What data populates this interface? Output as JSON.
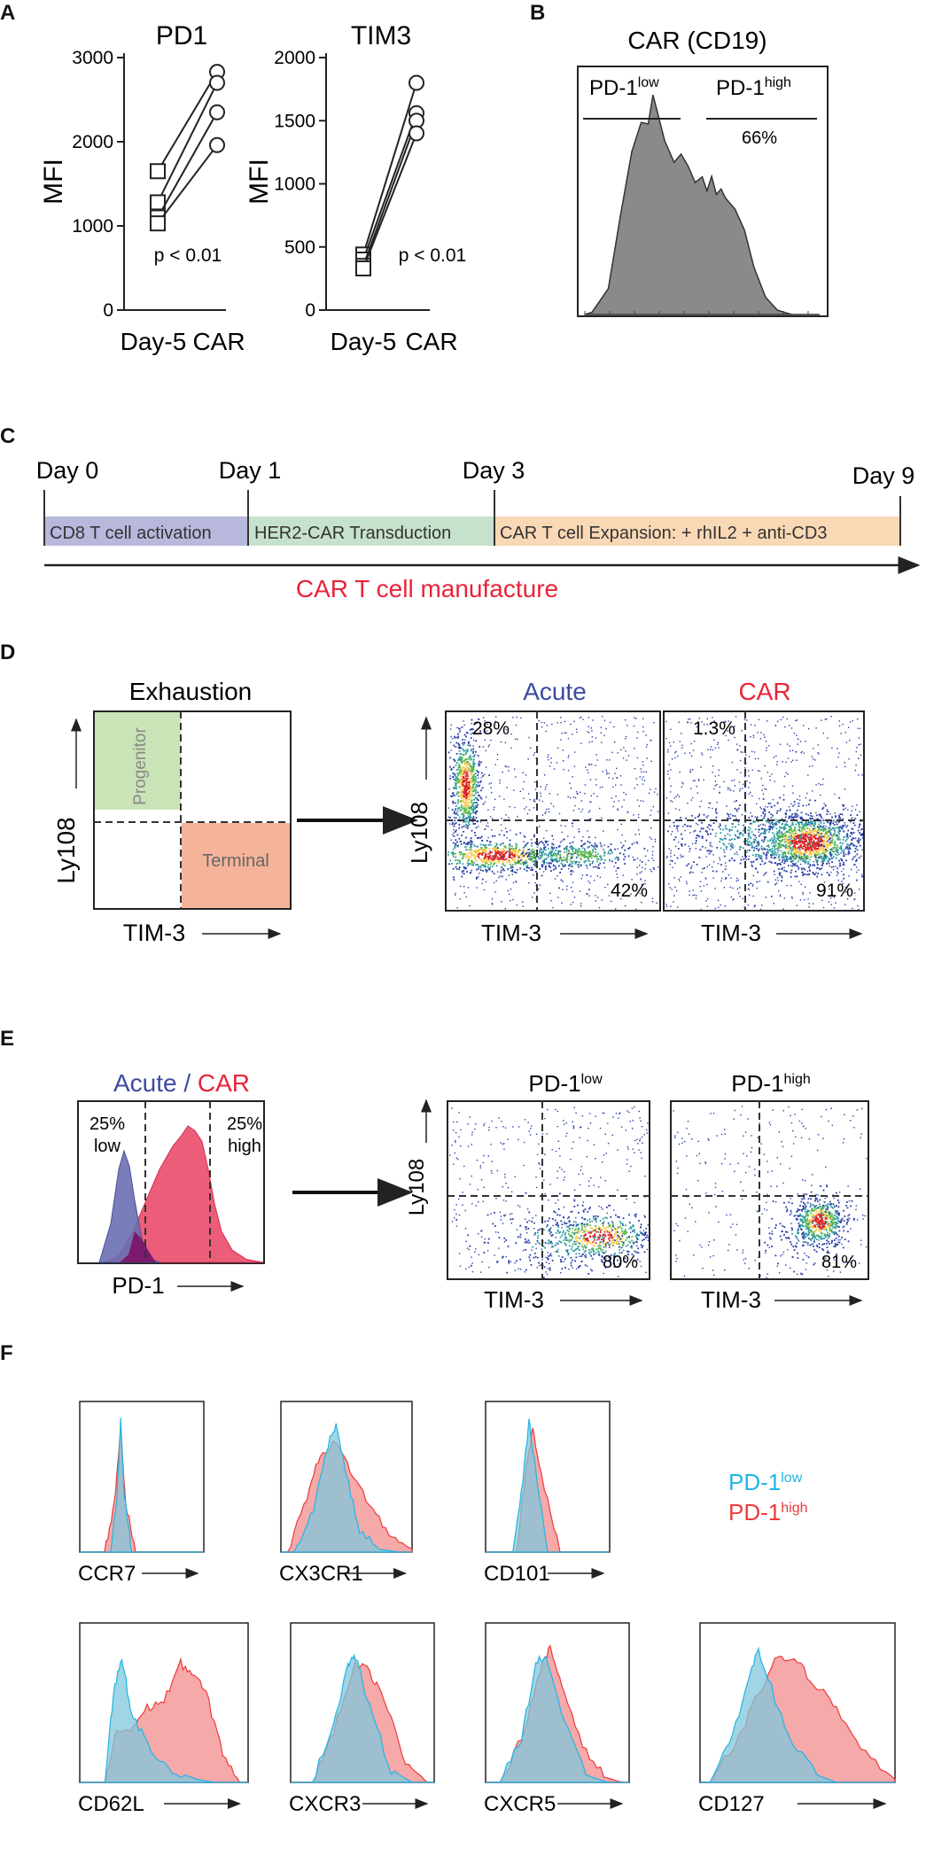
{
  "panels": {
    "A": "A",
    "B": "B",
    "C": "C",
    "D": "D",
    "E": "E",
    "F": "F"
  },
  "colors": {
    "acute": "#3b4ba0",
    "car": "#e8243a",
    "progenitor": "#c9e4b6",
    "terminal": "#f5b49a",
    "pd1low": "#22b5e6",
    "pd1high": "#ee3a3a",
    "cd8": "#b7b8dc",
    "her2": "#c7e2cc",
    "exp": "#f9d8b5",
    "gray": "#8a8a8a"
  },
  "panelA": {
    "charts": [
      {
        "title": "PD1",
        "ylabel": "MFI",
        "yticks": [
          "0",
          "1000",
          "2000",
          "3000"
        ],
        "xticks": [
          "Day-5",
          "CAR"
        ],
        "p_text": "p < 0.01"
      },
      {
        "title": "TIM3",
        "ylabel": "MFI",
        "yticks": [
          "0",
          "500",
          "1000",
          "1500",
          "2000"
        ],
        "xticks": [
          "Day-5",
          "CAR"
        ],
        "p_text": "p < 0.01"
      }
    ]
  },
  "panelB": {
    "title": "CAR (CD19)",
    "gate_low_base": "PD-1",
    "gate_low_sup": "low",
    "gate_high_base": "PD-1",
    "gate_high_sup": "high",
    "high_pct": "66%"
  },
  "panelC": {
    "days": [
      "Day 0",
      "Day 1",
      "Day 3",
      "Day 9"
    ],
    "segments": [
      "CD8 T cell activation",
      "HER2-CAR Transduction",
      "CAR T cell Expansion: + rhIL2 + anti-CD3"
    ],
    "arrow_label": "CAR T cell manufacture"
  },
  "panelD": {
    "schematic_title": "Exhaustion",
    "progenitor": "Progenitor",
    "terminal": "Terminal",
    "ylabel": "Ly108",
    "xlabel": "TIM-3",
    "plots": [
      {
        "title": "Acute",
        "ul": "28%",
        "lr": "42%"
      },
      {
        "title": "CAR",
        "ul": "1.3%",
        "lr": "91%"
      }
    ]
  },
  "panelE": {
    "hist_title_a": "Acute",
    "hist_title_sep": " / ",
    "hist_title_b": "CAR",
    "low_pct": "25%",
    "low_label": "low",
    "high_pct": "25%",
    "high_label": "high",
    "xlabel": "PD-1",
    "plots": [
      {
        "title_base": "PD-1",
        "title_sup": "low",
        "lr": "80%"
      },
      {
        "title_base": "PD-1",
        "title_sup": "high",
        "lr": "81%"
      }
    ],
    "ylabel": "Ly108",
    "xlabel2": "TIM-3"
  },
  "panelF": {
    "legend_low_base": "PD-1",
    "legend_low_sup": "low",
    "legend_high_base": "PD-1",
    "legend_high_sup": "high",
    "markers": [
      "CCR7",
      "CX3CR1",
      "CD101",
      "CD62L",
      "CXCR3",
      "CXCR5",
      "CD127"
    ]
  },
  "chart_data": [
    {
      "type": "line",
      "panel": "A",
      "title": "PD1",
      "xlabel": "",
      "ylabel": "MFI",
      "categories": [
        "Day-5",
        "CAR"
      ],
      "ylim": [
        0,
        3000
      ],
      "series": [
        {
          "name": "s1",
          "values": [
            1650,
            2830
          ]
        },
        {
          "name": "s2",
          "values": [
            1280,
            2700
          ]
        },
        {
          "name": "s3",
          "values": [
            1100,
            2350
          ]
        },
        {
          "name": "s4",
          "values": [
            1030,
            1960
          ]
        }
      ],
      "annotation": "p < 0.01"
    },
    {
      "type": "line",
      "panel": "A",
      "title": "TIM3",
      "xlabel": "",
      "ylabel": "MFI",
      "categories": [
        "Day-5",
        "CAR"
      ],
      "ylim": [
        0,
        2000
      ],
      "series": [
        {
          "name": "s1",
          "values": [
            440,
            1800
          ]
        },
        {
          "name": "s2",
          "values": [
            400,
            1560
          ]
        },
        {
          "name": "s3",
          "values": [
            350,
            1500
          ]
        },
        {
          "name": "s4",
          "values": [
            330,
            1400
          ]
        }
      ],
      "annotation": "p < 0.01"
    },
    {
      "type": "area",
      "panel": "B",
      "title": "CAR (CD19)",
      "xlabel": "",
      "ylabel": "",
      "x": [
        0,
        0.1,
        0.2,
        0.3,
        0.4,
        0.5,
        0.6,
        0.7,
        0.8,
        0.9,
        1.0
      ],
      "values": [
        0,
        0.03,
        0.55,
        1.0,
        0.75,
        0.7,
        0.65,
        0.55,
        0.25,
        0.03,
        0
      ],
      "annotation": "66% PD-1 high"
    },
    {
      "type": "area",
      "panel": "E",
      "title": "Acute / CAR",
      "xlabel": "PD-1",
      "series": [
        {
          "name": "Acute",
          "peak": 0.3
        },
        {
          "name": "CAR",
          "peak": 0.75
        }
      ],
      "gates": {
        "low": "25%",
        "high": "25%"
      }
    },
    {
      "type": "scatter",
      "panel": "D",
      "title": "Acute",
      "xlabel": "TIM-3",
      "ylabel": "Ly108",
      "quadrants": {
        "upper_left": "28%",
        "lower_right": "42%"
      }
    },
    {
      "type": "scatter",
      "panel": "D",
      "title": "CAR",
      "xlabel": "TIM-3",
      "ylabel": "Ly108",
      "quadrants": {
        "upper_left": "1.3%",
        "lower_right": "91%"
      }
    },
    {
      "type": "scatter",
      "panel": "E",
      "title": "PD-1 low",
      "xlabel": "TIM-3",
      "ylabel": "Ly108",
      "quadrants": {
        "lower_right": "80%"
      }
    },
    {
      "type": "scatter",
      "panel": "E",
      "title": "PD-1 high",
      "xlabel": "TIM-3",
      "ylabel": "Ly108",
      "quadrants": {
        "lower_right": "81%"
      }
    },
    {
      "type": "area",
      "panel": "F",
      "title": "Marker histograms",
      "series": [
        {
          "name": "PD-1 low"
        },
        {
          "name": "PD-1 high"
        }
      ],
      "categories": [
        "CCR7",
        "CX3CR1",
        "CD101",
        "CD62L",
        "CXCR3",
        "CXCR5",
        "CD127"
      ]
    }
  ]
}
